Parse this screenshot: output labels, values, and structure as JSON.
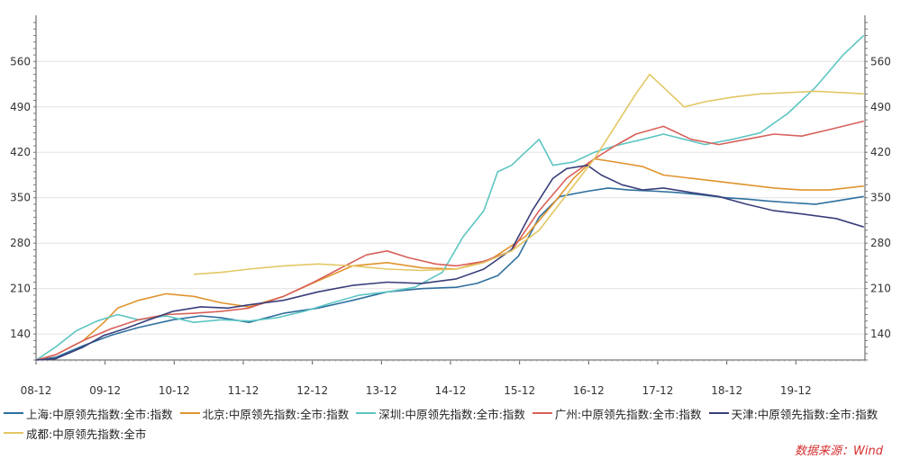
{
  "chart_data": {
    "type": "line",
    "x_ticks": [
      "08-12",
      "09-12",
      "10-12",
      "11-12",
      "12-12",
      "13-12",
      "14-12",
      "15-12",
      "16-12",
      "17-12",
      "18-12",
      "19-12"
    ],
    "y_ticks": [
      140,
      210,
      280,
      350,
      420,
      490,
      560
    ],
    "xlim": [
      2008.917,
      2020.917
    ],
    "ylim": [
      100,
      620
    ],
    "grid": true,
    "source": "数据来源：Wind",
    "series": [
      {
        "name": "上海:中原领先指数:全市:指数",
        "color": "#2e6f9e",
        "x": [
          2008.92,
          2009.2,
          2009.6,
          2010.0,
          2010.4,
          2010.9,
          2011.3,
          2011.6,
          2012.0,
          2012.5,
          2013.0,
          2013.5,
          2014.0,
          2014.5,
          2015.0,
          2015.3,
          2015.6,
          2015.9,
          2016.2,
          2016.5,
          2016.9,
          2017.2,
          2017.5,
          2017.9,
          2018.2,
          2018.5,
          2018.9,
          2019.2,
          2019.5,
          2019.9,
          2020.2,
          2020.5,
          2020.9
        ],
        "y": [
          100,
          104,
          122,
          138,
          150,
          162,
          168,
          165,
          158,
          172,
          180,
          192,
          205,
          210,
          212,
          218,
          230,
          260,
          320,
          352,
          360,
          365,
          362,
          360,
          358,
          355,
          350,
          348,
          345,
          342,
          340,
          345,
          352
        ]
      },
      {
        "name": "北京:中原领先指数:全市:指数",
        "color": "#e0942e",
        "x": [
          2008.92,
          2009.2,
          2009.6,
          2009.9,
          2010.1,
          2010.4,
          2010.8,
          2011.2,
          2011.6,
          2012.0,
          2012.5,
          2013.0,
          2013.5,
          2014.0,
          2014.5,
          2015.0,
          2015.5,
          2016.0,
          2016.4,
          2016.7,
          2017.0,
          2017.3,
          2017.7,
          2018.0,
          2018.4,
          2018.8,
          2019.2,
          2019.6,
          2020.0,
          2020.4,
          2020.9
        ],
        "y": [
          100,
          108,
          130,
          158,
          180,
          192,
          202,
          198,
          188,
          182,
          198,
          222,
          245,
          250,
          242,
          240,
          255,
          290,
          340,
          380,
          410,
          405,
          398,
          385,
          380,
          375,
          370,
          365,
          362,
          362,
          368
        ]
      },
      {
        "name": "深圳:中原领先指数:全市:指数",
        "color": "#5cc5c2",
        "x": [
          2008.92,
          2009.2,
          2009.5,
          2009.8,
          2010.1,
          2010.4,
          2010.8,
          2011.2,
          2011.6,
          2012.0,
          2012.4,
          2012.8,
          2013.2,
          2013.6,
          2014.0,
          2014.4,
          2014.8,
          2015.1,
          2015.4,
          2015.6,
          2015.8,
          2016.0,
          2016.2,
          2016.4,
          2016.7,
          2017.0,
          2017.3,
          2017.7,
          2018.0,
          2018.3,
          2018.6,
          2019.0,
          2019.4,
          2019.8,
          2020.2,
          2020.6,
          2020.9
        ],
        "y": [
          100,
          120,
          145,
          160,
          170,
          162,
          168,
          158,
          162,
          160,
          165,
          175,
          188,
          200,
          205,
          212,
          235,
          290,
          330,
          390,
          400,
          420,
          440,
          400,
          405,
          420,
          430,
          440,
          448,
          440,
          432,
          440,
          450,
          480,
          520,
          570,
          600
        ]
      },
      {
        "name": "广州:中原领先指数:全市:指数",
        "color": "#d9605a",
        "x": [
          2008.92,
          2009.2,
          2009.6,
          2010.0,
          2010.4,
          2010.8,
          2011.2,
          2011.6,
          2012.0,
          2012.5,
          2012.9,
          2013.3,
          2013.7,
          2014.0,
          2014.3,
          2014.7,
          2015.0,
          2015.4,
          2015.8,
          2016.2,
          2016.6,
          2017.0,
          2017.3,
          2017.6,
          2018.0,
          2018.4,
          2018.8,
          2019.2,
          2019.6,
          2020.0,
          2020.4,
          2020.9
        ],
        "y": [
          100,
          108,
          130,
          148,
          162,
          170,
          172,
          175,
          180,
          198,
          218,
          240,
          262,
          268,
          258,
          248,
          245,
          252,
          268,
          330,
          380,
          410,
          430,
          448,
          460,
          440,
          432,
          440,
          448,
          445,
          455,
          468
        ]
      },
      {
        "name": "天津:中原领先指数:全市:指数",
        "color": "#3a3f7a",
        "x": [
          2008.92,
          2009.2,
          2009.6,
          2009.9,
          2010.2,
          2010.5,
          2010.9,
          2011.3,
          2011.7,
          2012.0,
          2012.5,
          2013.0,
          2013.5,
          2014.0,
          2014.5,
          2015.0,
          2015.4,
          2015.8,
          2016.1,
          2016.4,
          2016.6,
          2016.9,
          2017.1,
          2017.4,
          2017.7,
          2018.0,
          2018.4,
          2018.8,
          2019.2,
          2019.6,
          2020.0,
          2020.5,
          2020.9
        ],
        "y": [
          100,
          102,
          120,
          138,
          148,
          160,
          175,
          182,
          180,
          185,
          192,
          205,
          215,
          220,
          218,
          225,
          240,
          270,
          330,
          380,
          395,
          400,
          385,
          370,
          362,
          365,
          358,
          352,
          340,
          330,
          325,
          318,
          305
        ]
      },
      {
        "name": "成都:中原领先指数:全市",
        "color": "#e3c764",
        "x": [
          2011.2,
          2011.6,
          2012.0,
          2012.5,
          2013.0,
          2013.5,
          2014.0,
          2014.5,
          2015.0,
          2015.4,
          2015.8,
          2016.2,
          2016.6,
          2017.0,
          2017.3,
          2017.6,
          2017.8,
          2018.0,
          2018.3,
          2018.6,
          2019.0,
          2019.4,
          2019.8,
          2020.2,
          2020.6,
          2020.9
        ],
        "y": [
          232,
          235,
          240,
          245,
          248,
          245,
          240,
          238,
          240,
          250,
          268,
          300,
          355,
          410,
          460,
          510,
          540,
          520,
          490,
          498,
          505,
          510,
          512,
          514,
          512,
          510
        ]
      }
    ]
  }
}
